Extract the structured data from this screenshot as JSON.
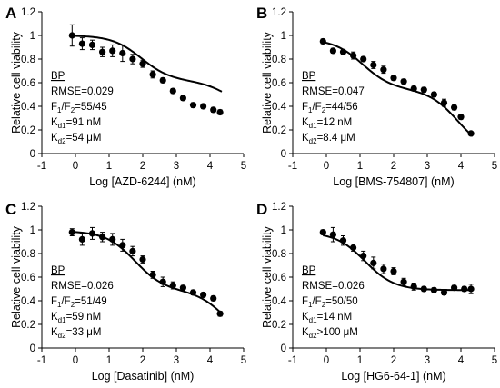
{
  "chart_data": [
    {
      "type": "scatter",
      "panel": "A",
      "xlabel": "Log [AZD-6244] (nM)",
      "ylabel": "Relative cell viability",
      "xlim": [
        -1,
        5
      ],
      "ylim": [
        0,
        1.2
      ],
      "xticks": [
        "-1",
        "0",
        "1",
        "2",
        "3",
        "4",
        "5"
      ],
      "yticks": [
        "0",
        "0.2",
        "0.4",
        "0.6",
        "0.8",
        "1",
        "1.2"
      ],
      "annotation": {
        "title": "BP",
        "rmse": "RMSE=0.029",
        "f_prefix": "F",
        "f_sub1": "1",
        "f_mid": "/F",
        "f_sub2": "2",
        "f_value": "=55/45",
        "k1_prefix": "K",
        "k1_sub": "d1",
        "k1_value": "=91 nM",
        "k2_prefix": "K",
        "k2_sub": "d2",
        "k2_value": "=54 μM"
      },
      "x": [
        -0.1,
        0.2,
        0.5,
        0.8,
        1.1,
        1.4,
        1.7,
        2.0,
        2.3,
        2.6,
        2.9,
        3.2,
        3.5,
        3.8,
        4.1,
        4.3
      ],
      "y": [
        1.0,
        0.93,
        0.92,
        0.86,
        0.87,
        0.85,
        0.8,
        0.76,
        0.67,
        0.62,
        0.53,
        0.47,
        0.41,
        0.4,
        0.37,
        0.35
      ],
      "yerr": [
        0.09,
        0.05,
        0.04,
        0.04,
        0.05,
        0.07,
        0.04,
        0.03,
        0.03,
        0.02,
        0.02,
        0.02,
        0.02,
        0.02,
        0.02,
        0.02
      ],
      "fit": {
        "top": 1.0,
        "bottom": 0.3,
        "f1": 0.55,
        "logk1": 1.96,
        "logk2": 4.73
      }
    },
    {
      "type": "scatter",
      "panel": "B",
      "xlabel": "Log [BMS-754807] (nM)",
      "ylabel": "Relative cell viability",
      "xlim": [
        -1,
        5
      ],
      "ylim": [
        0,
        1.2
      ],
      "xticks": [
        "-1",
        "0",
        "1",
        "2",
        "3",
        "4",
        "5"
      ],
      "yticks": [
        "0",
        "0.2",
        "0.4",
        "0.6",
        "0.8",
        "1",
        "1.2"
      ],
      "annotation": {
        "title": "BP",
        "rmse": "RMSE=0.047",
        "f_prefix": "F",
        "f_sub1": "1",
        "f_mid": "/F",
        "f_sub2": "2",
        "f_value": "=44/56",
        "k1_prefix": "K",
        "k1_sub": "d1",
        "k1_value": "=12 nM",
        "k2_prefix": "K",
        "k2_sub": "d2",
        "k2_value": "=8.4 μM"
      },
      "x": [
        -0.1,
        0.2,
        0.5,
        0.8,
        1.1,
        1.4,
        1.7,
        2.0,
        2.3,
        2.6,
        2.9,
        3.2,
        3.5,
        3.8,
        4.0,
        4.3
      ],
      "y": [
        0.95,
        0.87,
        0.86,
        0.83,
        0.8,
        0.75,
        0.71,
        0.64,
        0.61,
        0.55,
        0.54,
        0.5,
        0.43,
        0.39,
        0.31,
        0.17
      ],
      "yerr": [
        0.02,
        0.02,
        0.02,
        0.03,
        0.02,
        0.03,
        0.03,
        0.02,
        0.02,
        0.02,
        0.02,
        0.02,
        0.03,
        0.02,
        0.02,
        0.01
      ],
      "fit": {
        "top": 0.97,
        "bottom": 0.0,
        "f1": 0.44,
        "logk1": 1.08,
        "logk2": 3.92
      }
    },
    {
      "type": "scatter",
      "panel": "C",
      "xlabel": "Log [Dasatinib] (nM)",
      "ylabel": "Relative cell viability",
      "xlim": [
        -1,
        5
      ],
      "ylim": [
        0,
        1.2
      ],
      "xticks": [
        "-1",
        "0",
        "1",
        "2",
        "3",
        "4",
        "5"
      ],
      "yticks": [
        "0",
        "0.2",
        "0.4",
        "0.6",
        "0.8",
        "1",
        "1.2"
      ],
      "annotation": {
        "title": "BP",
        "rmse": "RMSE=0.026",
        "f_prefix": "F",
        "f_sub1": "1",
        "f_mid": "/F",
        "f_sub2": "2",
        "f_value": "=51/49",
        "k1_prefix": "K",
        "k1_sub": "d1",
        "k1_value": "=59 nM",
        "k2_prefix": "K",
        "k2_sub": "d2",
        "k2_value": "=33 μM"
      },
      "x": [
        -0.1,
        0.2,
        0.5,
        0.8,
        1.1,
        1.4,
        1.7,
        2.0,
        2.3,
        2.6,
        2.9,
        3.2,
        3.5,
        3.8,
        4.1,
        4.3
      ],
      "y": [
        0.98,
        0.92,
        0.97,
        0.94,
        0.92,
        0.87,
        0.82,
        0.75,
        0.62,
        0.56,
        0.53,
        0.51,
        0.47,
        0.45,
        0.42,
        0.29
      ],
      "yerr": [
        0.03,
        0.05,
        0.05,
        0.04,
        0.05,
        0.05,
        0.04,
        0.03,
        0.03,
        0.04,
        0.03,
        0.02,
        0.02,
        0.02,
        0.02,
        0.02
      ],
      "fit": {
        "top": 0.99,
        "bottom": 0.0,
        "f1": 0.51,
        "logk1": 1.77,
        "logk2": 4.52
      }
    },
    {
      "type": "scatter",
      "panel": "D",
      "xlabel": "Log [HG6-64-1] (nM)",
      "ylabel": "Relative cell viability",
      "xlim": [
        -1,
        5
      ],
      "ylim": [
        0,
        1.2
      ],
      "xticks": [
        "-1",
        "0",
        "1",
        "2",
        "3",
        "4",
        "5"
      ],
      "yticks": [
        "0",
        "0.2",
        "0.4",
        "0.6",
        "0.8",
        "1",
        "1.2"
      ],
      "annotation": {
        "title": "BP",
        "rmse": "RMSE=0.026",
        "f_prefix": "F",
        "f_sub1": "1",
        "f_mid": "/F",
        "f_sub2": "2",
        "f_value": "=50/50",
        "k1_prefix": "K",
        "k1_sub": "d1",
        "k1_value": "=14 nM",
        "k2_prefix": "K",
        "k2_sub": "d2",
        "k2_value": ">100 μM"
      },
      "x": [
        -0.1,
        0.2,
        0.5,
        0.8,
        1.1,
        1.4,
        1.7,
        2.0,
        2.3,
        2.6,
        2.9,
        3.2,
        3.5,
        3.8,
        4.1,
        4.3
      ],
      "y": [
        0.98,
        0.96,
        0.91,
        0.85,
        0.78,
        0.72,
        0.67,
        0.65,
        0.56,
        0.52,
        0.5,
        0.49,
        0.47,
        0.51,
        0.5,
        0.5
      ],
      "yerr": [
        0.02,
        0.06,
        0.04,
        0.03,
        0.04,
        0.05,
        0.04,
        0.03,
        0.03,
        0.03,
        0.02,
        0.02,
        0.02,
        0.02,
        0.02,
        0.04
      ],
      "fit": {
        "top": 0.98,
        "bottom": 0.0,
        "f1": 0.5,
        "logk1": 1.15,
        "logk2": 8.0
      }
    }
  ]
}
